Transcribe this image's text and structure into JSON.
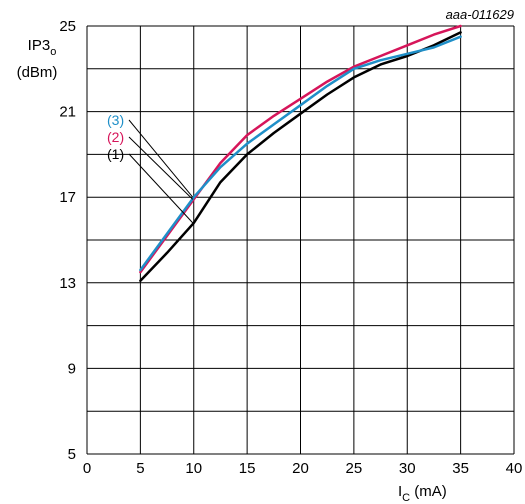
{
  "chart_data": {
    "type": "line",
    "code": "aaa-011629",
    "ylabel_main": "IP3",
    "ylabel_sub": "o",
    "ylabel_unit": "(dBm)",
    "xlabel_main": "I",
    "xlabel_sub": "C",
    "xlabel_unit": " (mA)",
    "xlim": [
      0,
      40
    ],
    "ylim": [
      5,
      25
    ],
    "xticks": [
      0,
      5,
      10,
      15,
      20,
      25,
      30,
      35,
      40
    ],
    "yticks": [
      5,
      9,
      13,
      17,
      21,
      25
    ],
    "grid": true,
    "series": [
      {
        "name": "(1)",
        "color": "#000000",
        "x": [
          5,
          7.5,
          10,
          12.5,
          15,
          17.5,
          20,
          22.5,
          25,
          27.5,
          30,
          32.5,
          35
        ],
        "y": [
          13.1,
          14.4,
          15.8,
          17.7,
          19.0,
          20.0,
          20.9,
          21.8,
          22.6,
          23.2,
          23.6,
          24.1,
          24.7
        ]
      },
      {
        "name": "(2)",
        "color": "#d6155a",
        "x": [
          5,
          7.5,
          10,
          12.5,
          15,
          17.5,
          20,
          22.5,
          25,
          27.5,
          30,
          32.5,
          35
        ],
        "y": [
          13.5,
          15.2,
          16.9,
          18.6,
          19.9,
          20.8,
          21.6,
          22.4,
          23.1,
          23.6,
          24.1,
          24.6,
          25.0
        ]
      },
      {
        "name": "(3)",
        "color": "#1f8fc8",
        "x": [
          5,
          7.5,
          10,
          12.5,
          15,
          17.5,
          20,
          22.5,
          25,
          27.5,
          30,
          32.5,
          35
        ],
        "y": [
          13.6,
          15.3,
          17.0,
          18.4,
          19.5,
          20.4,
          21.3,
          22.2,
          23.0,
          23.4,
          23.7,
          24.0,
          24.5
        ]
      }
    ]
  }
}
